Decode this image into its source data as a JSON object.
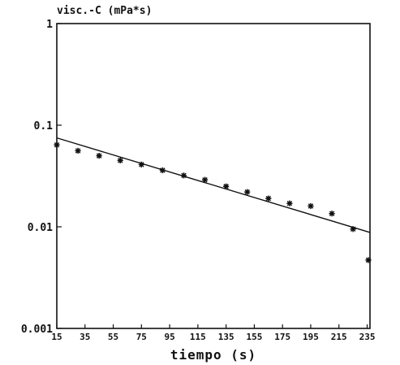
{
  "chart_data": {
    "type": "scatter",
    "ylabel": "visc.-C (mPa*s)",
    "xlabel": "tiempo (s)",
    "xlim": [
      15,
      237
    ],
    "ylim": [
      0.001,
      1
    ],
    "yscale": "log",
    "x_ticks": [
      15,
      35,
      55,
      75,
      95,
      115,
      135,
      155,
      175,
      195,
      215,
      235
    ],
    "x_tick_labels": [
      "15",
      "35",
      "55",
      "75",
      "95",
      "115",
      "135",
      "155",
      "175",
      "195",
      "215",
      "235"
    ],
    "y_ticks": [
      0.001,
      0.01,
      0.1,
      1
    ],
    "y_tick_labels": [
      "0.001",
      "0.01",
      "0.1",
      "1"
    ],
    "grid": false,
    "series": [
      {
        "marker": "asterisk",
        "x": [
          15,
          30,
          45,
          60,
          75,
          90,
          105,
          120,
          135,
          150,
          165,
          180,
          195,
          210,
          225,
          240
        ],
        "y": [
          0.064,
          0.056,
          0.05,
          0.045,
          0.041,
          0.036,
          0.032,
          0.029,
          0.025,
          0.022,
          0.019,
          0.017,
          0.016,
          0.0135,
          0.0095,
          0.0047
        ]
      },
      {
        "style": "line",
        "x": [
          15,
          237
        ],
        "y": [
          0.075,
          0.0088
        ]
      }
    ]
  }
}
